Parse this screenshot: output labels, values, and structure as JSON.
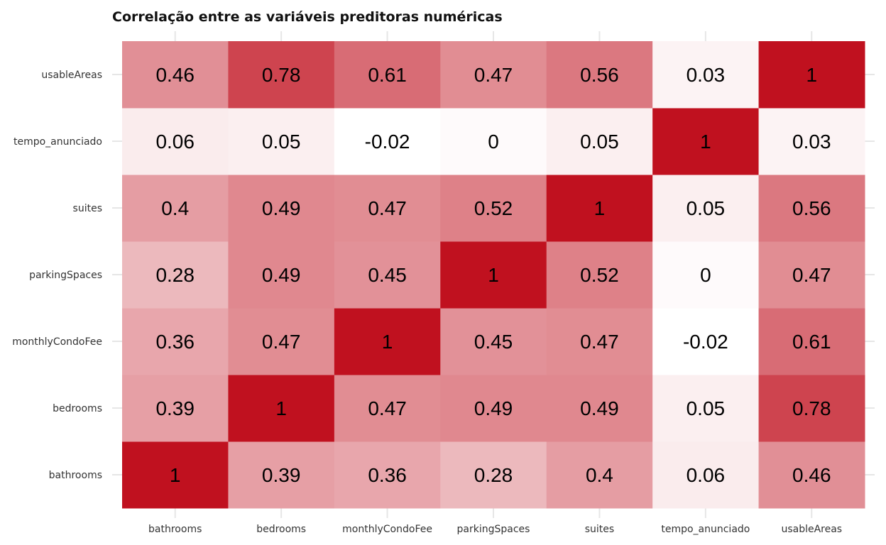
{
  "chart_data": {
    "type": "heatmap",
    "title": "Correlação entre as variáveis preditoras numéricas",
    "xlabel": "",
    "ylabel": "",
    "x_categories": [
      "bathrooms",
      "bedrooms",
      "monthlyCondoFee",
      "parkingSpaces",
      "suites",
      "tempo_anunciado",
      "usableAreas"
    ],
    "y_categories": [
      "bathrooms",
      "bedrooms",
      "monthlyCondoFee",
      "parkingSpaces",
      "suites",
      "tempo_anunciado",
      "usableAreas"
    ],
    "values": [
      [
        1,
        0.39,
        0.36,
        0.28,
        0.4,
        0.06,
        0.46
      ],
      [
        0.39,
        1,
        0.47,
        0.49,
        0.49,
        0.05,
        0.78
      ],
      [
        0.36,
        0.47,
        1,
        0.45,
        0.47,
        -0.02,
        0.61
      ],
      [
        0.28,
        0.49,
        0.45,
        1,
        0.52,
        0,
        0.47
      ],
      [
        0.4,
        0.49,
        0.47,
        0.52,
        1,
        0.05,
        0.56
      ],
      [
        0.06,
        0.05,
        -0.02,
        0,
        0.05,
        1,
        0.03
      ],
      [
        0.46,
        0.78,
        0.61,
        0.47,
        0.56,
        0.03,
        1
      ]
    ],
    "color_scale": {
      "low": "#ffffff",
      "high": "#c0111f"
    },
    "grid": true,
    "legend": "none"
  }
}
